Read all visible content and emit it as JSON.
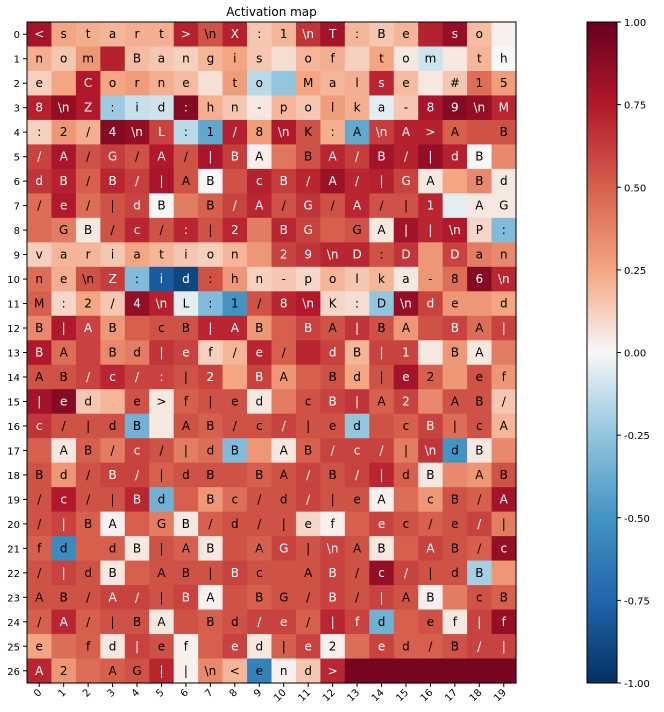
{
  "chart_data": {
    "type": "heatmap",
    "title": "Activation map",
    "x_ticks": [
      "0",
      "1",
      "2",
      "3",
      "4",
      "5",
      "6",
      "7",
      "8",
      "9",
      "10",
      "11",
      "12",
      "13",
      "14",
      "15",
      "16",
      "17",
      "18",
      "19"
    ],
    "y_ticks": [
      "0",
      "1",
      "2",
      "3",
      "4",
      "5",
      "6",
      "7",
      "8",
      "9",
      "10",
      "11",
      "12",
      "13",
      "14",
      "15",
      "16",
      "17",
      "18",
      "19",
      "20",
      "21",
      "22",
      "23",
      "24",
      "25",
      "26"
    ],
    "colorbar": {
      "vmin": -1.0,
      "vmax": 1.0,
      "ticks": [
        "-1.00",
        "-0.75",
        "-0.50",
        "-0.25",
        "0.00",
        "0.25",
        "0.50",
        "0.75",
        "1.00"
      ],
      "colormap": "RdBu_r"
    },
    "grid": false,
    "labels": [
      [
        "<",
        "s",
        "t",
        "a",
        "r",
        "t",
        ">",
        "\\n",
        "X",
        ":",
        "1",
        "\\n",
        "T",
        ":",
        "B",
        "e",
        "",
        "s",
        "o",
        ""
      ],
      [
        "n",
        "o",
        "m",
        "",
        "B",
        "a",
        "n",
        "g",
        "i",
        "s",
        "",
        "o",
        "f",
        "",
        "t",
        "o",
        "m",
        "",
        "t",
        "h"
      ],
      [
        "e",
        "",
        "C",
        "o",
        "r",
        "n",
        "e",
        "",
        "t",
        "o",
        "",
        "M",
        "a",
        "l",
        "s",
        "e",
        "",
        "#",
        "1",
        "5"
      ],
      [
        "8",
        "\\n",
        "Z",
        ":",
        "i",
        "d",
        ":",
        "h",
        "n",
        "-",
        "p",
        "o",
        "l",
        "k",
        "a",
        "-",
        "8",
        "9",
        "\\n",
        "M"
      ],
      [
        ":",
        "2",
        "/",
        "4",
        "\\n",
        "L",
        ":",
        "1",
        "/",
        "8",
        "\\n",
        "K",
        ":",
        "A",
        "\\n",
        "A",
        ">",
        "A",
        "",
        "B"
      ],
      [
        "/",
        "A",
        "/",
        "G",
        "/",
        "A",
        "/",
        "|",
        "B",
        "A",
        "",
        "B",
        "A",
        "/",
        "B",
        "/",
        "|",
        "d",
        "B",
        ""
      ],
      [
        "d",
        "B",
        "/",
        "B",
        "/",
        "|",
        "A",
        "B",
        "",
        "c",
        "B",
        "/",
        "A",
        "/",
        "|",
        "G",
        "A",
        "",
        "B",
        "d"
      ],
      [
        "/",
        "e",
        "/",
        "|",
        "d",
        "B",
        "",
        "B",
        "/",
        "A",
        "/",
        "G",
        "/",
        "A",
        "/",
        "|",
        "1",
        "",
        "A",
        "G"
      ],
      [
        "",
        "G",
        "B",
        "/",
        "c",
        "/",
        ":",
        "|",
        "2",
        "",
        "B",
        "G",
        "",
        "G",
        "A",
        "|",
        "|",
        "\\n",
        "P",
        ":"
      ],
      [
        "v",
        "a",
        "r",
        "i",
        "a",
        "t",
        "i",
        "o",
        "n",
        "",
        "2",
        "9",
        "\\n",
        "D",
        ":",
        "D",
        "",
        "D",
        "a",
        "n"
      ],
      [
        "n",
        "e",
        "\\n",
        "Z",
        ":",
        "i",
        "d",
        ":",
        "h",
        "n",
        "-",
        "p",
        "o",
        "l",
        "k",
        "a",
        "-",
        "8",
        "6",
        "\\n"
      ],
      [
        "M",
        ":",
        "2",
        "/",
        "4",
        "\\n",
        "L",
        ":",
        "1",
        "/",
        "8",
        "\\n",
        "K",
        ":",
        "D",
        "\\n",
        "d",
        "e",
        "",
        "d"
      ],
      [
        "B",
        "|",
        "A",
        "B",
        "",
        "c",
        "B",
        "|",
        "A",
        "B",
        "",
        "B",
        "A",
        "|",
        "B",
        "A",
        "",
        "B",
        "A",
        "|"
      ],
      [
        "B",
        "A",
        "",
        "B",
        "d",
        "|",
        "e",
        "f",
        "/",
        "e",
        "/",
        "",
        "d",
        "B",
        "|",
        "1",
        "",
        "B",
        "A",
        ""
      ],
      [
        "A",
        "B",
        "/",
        "c",
        "/",
        ":",
        "|",
        "2",
        "",
        "B",
        "A",
        "",
        "B",
        "d",
        "|",
        "e",
        "2",
        "",
        "e",
        "f"
      ],
      [
        "|",
        "e",
        "d",
        "",
        "e",
        ">",
        "f",
        "|",
        "e",
        "d",
        "",
        "c",
        "B",
        "|",
        "A",
        "2",
        "",
        "A",
        "B",
        "/"
      ],
      [
        "c",
        "/",
        "|",
        "d",
        "B",
        "",
        "A",
        "B",
        "/",
        "c",
        "/",
        "|",
        "e",
        "d",
        "",
        "c",
        "B",
        "|",
        "c",
        "A"
      ],
      [
        "",
        "A",
        "B",
        "/",
        "c",
        "/",
        "|",
        "d",
        "B",
        "",
        "A",
        "B",
        "/",
        "c",
        "/",
        "|",
        "\\n",
        "d",
        "B",
        ""
      ],
      [
        "B",
        "d",
        "/",
        "B",
        "/",
        "|",
        "d",
        "B",
        "",
        "B",
        "A",
        "/",
        "B",
        "/",
        "|",
        "d",
        "B",
        "",
        "A",
        "B"
      ],
      [
        "/",
        "c",
        "/",
        "|",
        "B",
        "d",
        "",
        "B",
        "c",
        "/",
        "d",
        "/",
        "|",
        "e",
        "A",
        "",
        "c",
        "B",
        "/",
        "A"
      ],
      [
        "/",
        "|",
        "B",
        "A",
        "",
        "G",
        "B",
        "/",
        "d",
        "/",
        "|",
        "e",
        "f",
        "",
        "e",
        "c",
        "/",
        "e",
        "/",
        "|"
      ],
      [
        "f",
        "d",
        "",
        "d",
        "B",
        "|",
        "A",
        "B",
        "",
        "A",
        "G",
        "|",
        "\\n",
        "A",
        "B",
        "",
        "A",
        "B",
        "/",
        "c"
      ],
      [
        "/",
        "|",
        "d",
        "B",
        "",
        "A",
        "B",
        "|",
        "B",
        "c",
        "",
        "A",
        "B",
        "/",
        "c",
        "/",
        "|",
        "d",
        "B",
        ""
      ],
      [
        "A",
        "B",
        "/",
        "A",
        "/",
        "|",
        "B",
        "A",
        "",
        "B",
        "G",
        "/",
        "B",
        "/",
        "|",
        "A",
        "B",
        "",
        "c",
        "B"
      ],
      [
        "/",
        "A",
        "/",
        "|",
        "B",
        "A",
        "",
        "B",
        "d",
        "/",
        "e",
        "/",
        "|",
        "f",
        "d",
        "",
        "e",
        "f",
        "|",
        "f"
      ],
      [
        "e",
        "",
        "f",
        "d",
        "|",
        "e",
        "f",
        "",
        "e",
        "d",
        "|",
        "e",
        "2",
        "",
        "e",
        "d",
        "/",
        "B",
        "/",
        "|"
      ],
      [
        "A",
        "2",
        "",
        "A",
        "G",
        "|",
        "|",
        "\\n",
        "<",
        "e",
        "n",
        "d",
        ">",
        "",
        "",
        "",
        "",
        "",
        "",
        ""
      ]
    ],
    "values": [
      [
        0.8,
        0.25,
        0.22,
        0.2,
        0.22,
        0.22,
        0.72,
        0.55,
        0.72,
        0.15,
        0.2,
        0.65,
        0.8,
        0.2,
        0.15,
        0.2,
        0.72,
        0.85,
        0.18,
        0.02
      ],
      [
        0.22,
        0.15,
        0.3,
        0.72,
        0.18,
        0.15,
        0.12,
        0.2,
        0.25,
        0.15,
        0.08,
        0.2,
        0.22,
        0.12,
        0.25,
        0.05,
        -0.1,
        0.05,
        0.2,
        0.0
      ],
      [
        0.12,
        0.25,
        0.75,
        0.25,
        0.28,
        0.22,
        0.18,
        0.07,
        0.28,
        -0.15,
        -0.25,
        0.25,
        0.2,
        0.22,
        0.7,
        0.18,
        0.05,
        0.15,
        0.45,
        0.28
      ],
      [
        0.72,
        0.85,
        0.75,
        -0.22,
        -0.12,
        -0.1,
        0.9,
        0.22,
        0.15,
        0.05,
        0.2,
        0.15,
        0.28,
        0.22,
        -0.05,
        0.15,
        0.78,
        0.9,
        0.85,
        0.7
      ],
      [
        0.12,
        0.3,
        0.22,
        0.9,
        0.85,
        0.6,
        -0.15,
        -0.4,
        0.72,
        0.28,
        0.75,
        0.55,
        0.22,
        -0.4,
        0.62,
        0.72,
        0.72,
        0.5,
        0.55,
        0.55
      ],
      [
        0.6,
        0.78,
        0.55,
        0.62,
        0.55,
        0.75,
        0.55,
        0.78,
        0.62,
        0.02,
        0.42,
        0.55,
        0.7,
        0.62,
        0.8,
        0.72,
        0.85,
        0.72,
        0.0,
        0.35
      ],
      [
        0.65,
        0.72,
        0.5,
        0.7,
        0.62,
        0.78,
        0.55,
        0.0,
        0.55,
        0.72,
        0.62,
        0.7,
        0.82,
        0.7,
        0.72,
        0.6,
        0.05,
        0.25,
        0.35,
        0.05
      ],
      [
        0.45,
        0.75,
        0.45,
        0.55,
        0.6,
        0.0,
        0.4,
        0.5,
        0.6,
        0.7,
        0.55,
        0.65,
        0.55,
        0.7,
        0.55,
        0.55,
        0.7,
        -0.05,
        0.05,
        0.05
      ],
      [
        0.45,
        0.4,
        0.05,
        0.55,
        0.7,
        0.55,
        0.7,
        0.55,
        0.7,
        0.4,
        0.7,
        0.6,
        0.5,
        0.55,
        0.05,
        0.8,
        0.7,
        0.75,
        0.1,
        -0.3
      ],
      [
        0.12,
        0.2,
        0.2,
        0.15,
        0.25,
        0.2,
        0.15,
        0.12,
        0.2,
        0.3,
        0.6,
        0.65,
        0.7,
        0.7,
        0.55,
        0.65,
        0.3,
        0.6,
        0.4,
        0.35
      ],
      [
        0.45,
        0.22,
        0.55,
        0.62,
        -0.3,
        -0.8,
        -0.9,
        0.55,
        0.3,
        0.12,
        0.15,
        0.1,
        0.2,
        0.15,
        0.2,
        0.05,
        0.3,
        0.45,
        0.9,
        0.7
      ],
      [
        0.5,
        0.1,
        0.25,
        0.15,
        0.85,
        0.72,
        -0.05,
        -0.3,
        -0.5,
        0.55,
        0.7,
        0.75,
        0.1,
        0.08,
        -0.25,
        0.85,
        0.6,
        0.3,
        0.3,
        0.25
      ],
      [
        0.35,
        0.75,
        0.6,
        0.3,
        0.5,
        0.55,
        0.55,
        0.7,
        0.7,
        0.3,
        0.5,
        0.6,
        0.55,
        0.65,
        0.55,
        0.3,
        0.55,
        0.6,
        0.45,
        0.6
      ],
      [
        0.75,
        0.45,
        0.6,
        0.35,
        0.4,
        0.65,
        0.6,
        0.12,
        0.2,
        0.7,
        0.5,
        0.7,
        0.6,
        0.2,
        0.6,
        0.6,
        0.05,
        0.3,
        0.05,
        0.4
      ],
      [
        0.55,
        0.55,
        0.6,
        0.7,
        0.6,
        0.6,
        0.55,
        0.6,
        0.25,
        0.6,
        0.3,
        0.5,
        0.55,
        0.25,
        0.55,
        0.8,
        0.5,
        0.3,
        0.55,
        0.3
      ],
      [
        0.8,
        0.9,
        0.15,
        0.2,
        0.55,
        0.05,
        0.5,
        0.55,
        0.55,
        0.05,
        0.4,
        0.55,
        0.6,
        0.65,
        0.5,
        0.6,
        0.35,
        0.55,
        0.55,
        0.15
      ],
      [
        0.65,
        0.55,
        0.55,
        0.55,
        -0.35,
        0.05,
        0.55,
        0.5,
        0.55,
        0.55,
        0.6,
        0.55,
        0.55,
        -0.25,
        0.55,
        0.5,
        0.6,
        0.45,
        0.55,
        0.2
      ],
      [
        0.5,
        0.05,
        0.5,
        0.4,
        0.6,
        0.55,
        0.4,
        0.45,
        -0.3,
        0.3,
        0.05,
        0.5,
        0.6,
        0.6,
        0.6,
        0.4,
        0.65,
        -0.5,
        0.05,
        0.35
      ],
      [
        0.55,
        0.3,
        0.55,
        0.6,
        0.6,
        0.5,
        0.55,
        0.55,
        0.55,
        0.5,
        0.55,
        0.6,
        0.55,
        0.6,
        0.7,
        0.5,
        0.05,
        0.35,
        0.3,
        0.55
      ],
      [
        0.55,
        0.75,
        0.55,
        0.55,
        0.7,
        -0.35,
        0.5,
        0.3,
        0.45,
        0.55,
        0.55,
        0.6,
        0.55,
        0.55,
        0.02,
        0.45,
        0.3,
        0.55,
        0.5,
        0.8
      ],
      [
        0.55,
        0.6,
        0.5,
        0.02,
        0.5,
        0.4,
        0.05,
        0.5,
        0.55,
        0.55,
        0.55,
        0.1,
        0.02,
        0.5,
        0.6,
        0.55,
        0.5,
        0.55,
        0.6,
        0.4
      ],
      [
        0.5,
        -0.55,
        0.5,
        0.5,
        0.05,
        0.55,
        0.5,
        0.05,
        0.55,
        0.5,
        0.6,
        0.55,
        0.6,
        0.55,
        0.05,
        0.5,
        0.6,
        0.55,
        0.5,
        0.85
      ],
      [
        0.55,
        0.6,
        0.55,
        0.05,
        0.5,
        0.55,
        0.55,
        0.55,
        0.6,
        0.55,
        0.55,
        0.55,
        0.6,
        0.55,
        0.85,
        0.6,
        0.55,
        0.55,
        -0.2,
        0.3
      ],
      [
        0.55,
        0.55,
        0.55,
        0.6,
        0.6,
        0.55,
        0.6,
        0.02,
        0.55,
        0.5,
        0.55,
        0.55,
        0.6,
        0.55,
        0.6,
        0.55,
        0.02,
        0.4,
        0.55,
        0.5
      ],
      [
        0.5,
        0.7,
        0.5,
        0.55,
        0.55,
        0.05,
        0.55,
        0.5,
        0.55,
        0.6,
        0.6,
        0.5,
        0.7,
        0.6,
        -0.35,
        0.5,
        0.55,
        0.05,
        0.6,
        0.85
      ],
      [
        0.25,
        0.45,
        0.5,
        0.05,
        0.6,
        0.55,
        0.02,
        0.5,
        0.6,
        0.05,
        0.5,
        0.6,
        0.02,
        0.45,
        0.6,
        0.5,
        0.5,
        0.55,
        0.6,
        0.6
      ],
      [
        0.7,
        0.3,
        0.45,
        0.5,
        0.55,
        0.7,
        0.02,
        0.35,
        0.2,
        -0.6,
        0.02,
        0.15,
        0.7,
        0.95,
        0.95,
        0.95,
        0.95,
        0.95,
        0.95,
        0.95
      ]
    ]
  }
}
